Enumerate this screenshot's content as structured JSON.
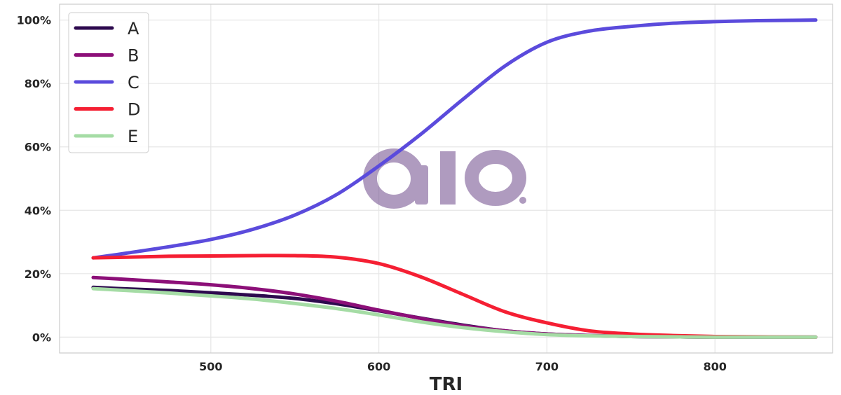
{
  "chart_data": {
    "type": "line",
    "title": "",
    "xlabel": "TRI",
    "ylabel": "",
    "xlim": [
      410,
      870
    ],
    "ylim": [
      -0.05,
      1.05
    ],
    "x_ticks": [
      500,
      600,
      700,
      800
    ],
    "x_tick_labels": [
      "500",
      "600",
      "700",
      "800"
    ],
    "y_ticks": [
      0,
      0.2,
      0.4,
      0.6,
      0.8,
      1.0
    ],
    "y_tick_labels": [
      "0%",
      "20%",
      "40%",
      "60%",
      "80%",
      "100%"
    ],
    "grid": true,
    "legend_position": "top-left",
    "x": [
      430,
      450,
      475,
      500,
      525,
      550,
      575,
      600,
      625,
      650,
      675,
      700,
      725,
      750,
      775,
      800,
      825,
      860
    ],
    "series": [
      {
        "name": "A",
        "color": "#2d0a4e",
        "values": [
          0.157,
          0.152,
          0.147,
          0.14,
          0.132,
          0.122,
          0.105,
          0.083,
          0.06,
          0.038,
          0.02,
          0.01,
          0.005,
          0.002,
          0.001,
          0.0,
          0.0,
          0.0
        ]
      },
      {
        "name": "B",
        "color": "#8c0f78",
        "values": [
          0.188,
          0.182,
          0.174,
          0.165,
          0.153,
          0.136,
          0.113,
          0.085,
          0.059,
          0.036,
          0.02,
          0.01,
          0.005,
          0.002,
          0.001,
          0.0,
          0.0,
          0.0
        ]
      },
      {
        "name": "C",
        "color": "#5b4bdc",
        "values": [
          0.25,
          0.265,
          0.285,
          0.308,
          0.34,
          0.385,
          0.45,
          0.54,
          0.64,
          0.75,
          0.855,
          0.93,
          0.965,
          0.98,
          0.99,
          0.995,
          0.998,
          1.0
        ]
      },
      {
        "name": "D",
        "color": "#f51f33",
        "values": [
          0.25,
          0.252,
          0.255,
          0.256,
          0.257,
          0.257,
          0.252,
          0.232,
          0.19,
          0.135,
          0.08,
          0.045,
          0.02,
          0.01,
          0.005,
          0.002,
          0.001,
          0.0
        ]
      },
      {
        "name": "E",
        "color": "#a5dca5",
        "values": [
          0.153,
          0.147,
          0.139,
          0.13,
          0.12,
          0.106,
          0.09,
          0.07,
          0.048,
          0.03,
          0.017,
          0.008,
          0.004,
          0.002,
          0.001,
          0.0,
          0.0,
          0.0
        ]
      }
    ]
  }
}
